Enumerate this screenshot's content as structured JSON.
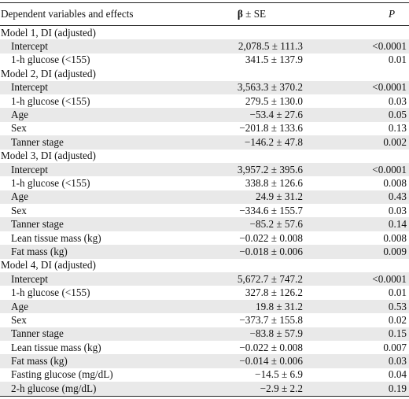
{
  "header": {
    "col1": "Dependent variables and effects",
    "col2_symbol": "β",
    "col2_rest": " ± SE",
    "col3": "P"
  },
  "rows": [
    {
      "type": "model",
      "label": "Model 1, DI (adjusted)"
    },
    {
      "type": "item",
      "label": "Intercept",
      "beta": "2,078.5 ± 111.3",
      "p": "<0.0001",
      "shaded": true
    },
    {
      "type": "item",
      "label": "1-h glucose (<155)",
      "beta": "341.5 ± 137.9",
      "p": "0.01",
      "shaded": false
    },
    {
      "type": "model",
      "label": "Model 2, DI (adjusted)"
    },
    {
      "type": "item",
      "label": "Intercept",
      "beta": "3,563.3 ± 370.2",
      "p": "<0.0001",
      "shaded": true
    },
    {
      "type": "item",
      "label": "1-h glucose (<155)",
      "beta": "279.5 ± 130.0",
      "p": "0.03",
      "shaded": false
    },
    {
      "type": "item",
      "label": "Age",
      "beta": "−53.4 ± 27.6",
      "p": "0.05",
      "shaded": true
    },
    {
      "type": "item",
      "label": "Sex",
      "beta": "−201.8 ± 133.6",
      "p": "0.13",
      "shaded": false
    },
    {
      "type": "item",
      "label": "Tanner stage",
      "beta": "−146.2 ± 47.8",
      "p": "0.002",
      "shaded": true
    },
    {
      "type": "model",
      "label": "Model 3, DI (adjusted)"
    },
    {
      "type": "item",
      "label": "Intercept",
      "beta": "3,957.2 ± 395.6",
      "p": "<0.0001",
      "shaded": true
    },
    {
      "type": "item",
      "label": "1-h glucose (<155)",
      "beta": "338.8 ± 126.6",
      "p": "0.008",
      "shaded": false
    },
    {
      "type": "item",
      "label": "Age",
      "beta": "24.9 ± 31.2",
      "p": "0.43",
      "shaded": true
    },
    {
      "type": "item",
      "label": "Sex",
      "beta": "−334.6 ± 155.7",
      "p": "0.03",
      "shaded": false
    },
    {
      "type": "item",
      "label": "Tanner stage",
      "beta": "−85.2 ± 57.6",
      "p": "0.14",
      "shaded": true
    },
    {
      "type": "item",
      "label": "Lean tissue mass (kg)",
      "beta": "−0.022 ± 0.008",
      "p": "0.008",
      "shaded": false
    },
    {
      "type": "item",
      "label": "Fat mass (kg)",
      "beta": "−0.018 ± 0.006",
      "p": "0.009",
      "shaded": true
    },
    {
      "type": "model",
      "label": "Model 4, DI (adjusted)"
    },
    {
      "type": "item",
      "label": "Intercept",
      "beta": "5,672.7 ± 747.2",
      "p": "<0.0001",
      "shaded": true
    },
    {
      "type": "item",
      "label": "1-h glucose (<155)",
      "beta": "327.8 ± 126.2",
      "p": "0.01",
      "shaded": false
    },
    {
      "type": "item",
      "label": "Age",
      "beta": "19.8 ± 31.2",
      "p": "0.53",
      "shaded": true
    },
    {
      "type": "item",
      "label": "Sex",
      "beta": "−373.7 ± 155.8",
      "p": "0.02",
      "shaded": false
    },
    {
      "type": "item",
      "label": "Tanner stage",
      "beta": "−83.8 ± 57.9",
      "p": "0.15",
      "shaded": true
    },
    {
      "type": "item",
      "label": "Lean tissue mass (kg)",
      "beta": "−0.022 ± 0.008",
      "p": "0.007",
      "shaded": false
    },
    {
      "type": "item",
      "label": "Fat mass (kg)",
      "beta": "−0.014 ± 0.006",
      "p": "0.03",
      "shaded": true
    },
    {
      "type": "item",
      "label": "Fasting glucose (mg/dL)",
      "beta": "−14.5 ± 6.9",
      "p": "0.04",
      "shaded": false
    },
    {
      "type": "item",
      "label": "2-h glucose (mg/dL)",
      "beta": "−2.9 ± 2.2",
      "p": "0.19",
      "shaded": true
    }
  ]
}
